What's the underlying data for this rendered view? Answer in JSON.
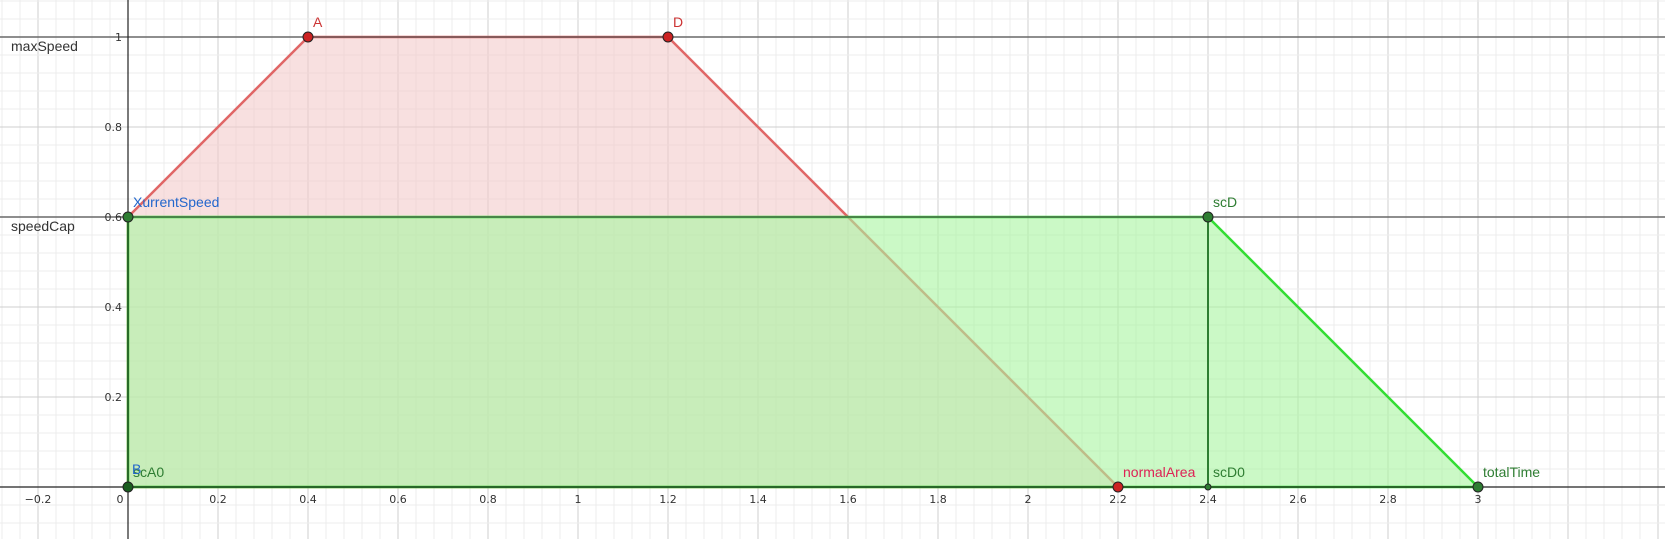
{
  "chart_data": {
    "type": "area",
    "xlim": [
      -0.28,
      3.1
    ],
    "ylim": [
      -0.05,
      1.08
    ],
    "grid": true,
    "x_ticks": [
      -0.2,
      0.2,
      0.4,
      0.6,
      0.8,
      1,
      1.2,
      1.4,
      1.6,
      1.8,
      2,
      2.2,
      2.4,
      2.6,
      2.8,
      3
    ],
    "x_tick_labels": [
      "−0.2",
      "0.2",
      "0.4",
      "0.6",
      "0.8",
      "1",
      "1.2",
      "1.4",
      "1.6",
      "1.8",
      "2",
      "2.2",
      "2.4",
      "2.6",
      "2.8",
      "3"
    ],
    "y_ticks": [
      0.2,
      0.4,
      0.6,
      0.8,
      1
    ],
    "y_tick_labels": [
      "0.2",
      "0.4",
      "0.6",
      "0.8",
      "1"
    ],
    "origin_label": "0",
    "horizontal_lines": [
      {
        "label": "maxSpeed",
        "y": 1
      },
      {
        "label": "speedCap",
        "y": 0.6
      }
    ],
    "series": [
      {
        "color": "#e06666",
        "fill": "#f4cccc",
        "polygon": [
          [
            0,
            0.6
          ],
          [
            0.4,
            1
          ],
          [
            1.2,
            1
          ],
          [
            2.2,
            0
          ],
          [
            0,
            0
          ]
        ]
      },
      {
        "color": "#33dd33",
        "fill": "#a8f5a0",
        "polygon": [
          [
            0,
            0.6
          ],
          [
            2.4,
            0.6
          ],
          [
            3,
            0
          ],
          [
            0,
            0
          ]
        ]
      }
    ],
    "segments": [
      {
        "color": "#2e7d32",
        "from": [
          2.4,
          0.6
        ],
        "to": [
          2.4,
          0
        ]
      }
    ],
    "points": [
      {
        "label": "A",
        "x": 0.4,
        "y": 1,
        "color": "#cc2222",
        "label_color": "#cc3333"
      },
      {
        "label": "D",
        "x": 1.2,
        "y": 1,
        "color": "#cc2222",
        "label_color": "#cc3333"
      },
      {
        "label": "XurrentSpeed",
        "x": 0,
        "y": 0.6,
        "color": "#2e7d32",
        "label_color": "#2266cc"
      },
      {
        "label": "scD",
        "x": 2.4,
        "y": 0.6,
        "color": "#2e7d32",
        "label_color": "#2e7d32"
      },
      {
        "label": "scA0",
        "x": 0,
        "y": 0,
        "color": "#1b5e20",
        "label_color": "#2e7d32"
      },
      {
        "label": "normalArea",
        "x": 2.2,
        "y": 0,
        "color": "#cc2222",
        "label_color": "#dd2255"
      },
      {
        "label": "scD0",
        "x": 2.4,
        "y": 0,
        "color": "#2e7d32",
        "label_color": "#2e7d32"
      },
      {
        "label": "totalTime",
        "x": 3,
        "y": 0,
        "color": "#2e7d32",
        "label_color": "#2e7d32"
      }
    ],
    "extra_label": {
      "text": "B",
      "x": 0,
      "y": 0,
      "color": "#2266cc"
    }
  }
}
